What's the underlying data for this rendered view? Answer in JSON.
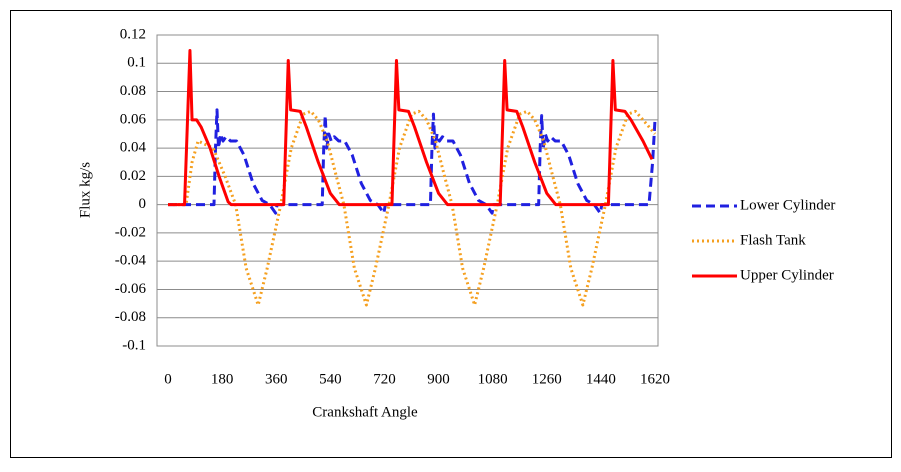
{
  "chart_data": {
    "type": "line",
    "x_label": "Crankshaft Angle",
    "y_label": "Flux  kg/s",
    "xlim": [
      0,
      1620
    ],
    "xticks": [
      0,
      180,
      360,
      540,
      720,
      900,
      1080,
      1260,
      1440,
      1620
    ],
    "ylim": [
      -0.1,
      0.12
    ],
    "yticks": [
      -0.1,
      -0.08,
      -0.06,
      -0.04,
      -0.02,
      0,
      0.02,
      0.04,
      0.06,
      0.08,
      0.1,
      0.12
    ],
    "grid": true,
    "legend": "right",
    "series": [
      {
        "name": "Lower Cylinder",
        "color": "#2020e0",
        "style": "dashed",
        "x": [
          0,
          153,
          158,
          163,
          168,
          175,
          183,
          193,
          208,
          228,
          253,
          283,
          313,
          338,
          358,
          363,
          513,
          518,
          523,
          528,
          535,
          543,
          553,
          568,
          588,
          613,
          643,
          673,
          698,
          718,
          723,
          873,
          878,
          883,
          888,
          895,
          903,
          913,
          928,
          948,
          973,
          1003,
          1033,
          1058,
          1078,
          1083,
          1233,
          1238,
          1243,
          1248,
          1255,
          1263,
          1273,
          1288,
          1308,
          1333,
          1363,
          1393,
          1418,
          1438,
          1443,
          1600,
          1612,
          1620
        ],
        "values": [
          0,
          0,
          0.04,
          0.067,
          0.04,
          0.05,
          0.045,
          0.048,
          0.045,
          0.045,
          0.035,
          0.015,
          0.003,
          0,
          -0.006,
          0,
          0,
          0.04,
          0.063,
          0.04,
          0.05,
          0.045,
          0.048,
          0.045,
          0.045,
          0.035,
          0.015,
          0.003,
          0,
          -0.006,
          0,
          0,
          0.04,
          0.064,
          0.04,
          0.05,
          0.045,
          0.048,
          0.045,
          0.045,
          0.035,
          0.015,
          0.003,
          0,
          -0.006,
          0,
          0,
          0.04,
          0.063,
          0.04,
          0.05,
          0.045,
          0.048,
          0.045,
          0.045,
          0.035,
          0.015,
          0.003,
          0,
          -0.006,
          0,
          0,
          0.03,
          0.06
        ]
      },
      {
        "name": "Flash Tank",
        "color": "#f5a020",
        "style": "dotted",
        "x": [
          0,
          60,
          80,
          100,
          150,
          190,
          225,
          260,
          300,
          330,
          375,
          410,
          450,
          475,
          500,
          530,
          560,
          585,
          620,
          660,
          690,
          735,
          770,
          810,
          835,
          860,
          890,
          920,
          945,
          980,
          1020,
          1050,
          1095,
          1130,
          1170,
          1195,
          1220,
          1250,
          1280,
          1305,
          1340,
          1380,
          1410,
          1455,
          1490,
          1530,
          1555,
          1580,
          1620
        ],
        "values": [
          0,
          0,
          0.03,
          0.045,
          0.04,
          0.02,
          0,
          -0.045,
          -0.071,
          -0.045,
          0,
          0.04,
          0.064,
          0.066,
          0.06,
          0.045,
          0.02,
          0,
          -0.045,
          -0.071,
          -0.045,
          0,
          0.04,
          0.064,
          0.066,
          0.06,
          0.045,
          0.02,
          0,
          -0.045,
          -0.071,
          -0.045,
          0,
          0.04,
          0.064,
          0.066,
          0.06,
          0.045,
          0.02,
          0,
          -0.045,
          -0.071,
          -0.045,
          0,
          0.04,
          0.064,
          0.066,
          0.06,
          0.05
        ]
      },
      {
        "name": "Upper Cylinder",
        "color": "#ff0000",
        "style": "solid",
        "x": [
          0,
          55,
          73,
          80,
          95,
          110,
          140,
          170,
          200,
          210,
          385,
          400,
          408,
          440,
          460,
          500,
          540,
          570,
          745,
          760,
          768,
          800,
          820,
          860,
          900,
          930,
          1105,
          1120,
          1128,
          1160,
          1180,
          1220,
          1260,
          1290,
          1465,
          1480,
          1488,
          1520,
          1540,
          1580,
          1610
        ],
        "values": [
          0,
          0,
          0.109,
          0.06,
          0.06,
          0.055,
          0.04,
          0.02,
          0.002,
          0,
          0,
          0.102,
          0.067,
          0.066,
          0.055,
          0.03,
          0.008,
          0,
          0,
          0.102,
          0.067,
          0.066,
          0.055,
          0.03,
          0.008,
          0,
          0,
          0.102,
          0.067,
          0.066,
          0.055,
          0.03,
          0.008,
          0,
          0,
          0.102,
          0.067,
          0.066,
          0.06,
          0.045,
          0.032
        ]
      }
    ]
  }
}
